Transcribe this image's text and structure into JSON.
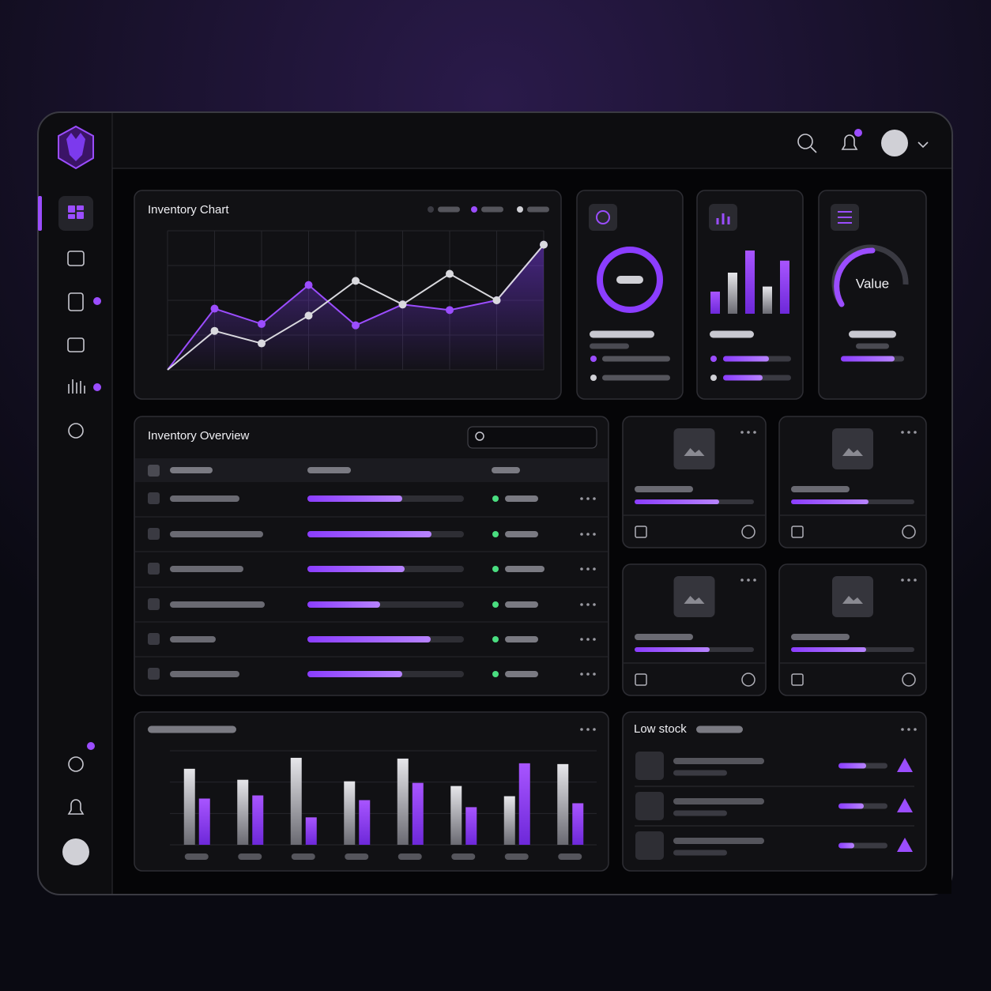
{
  "inventory_chart": {
    "type": "line",
    "title": "Inventory Chart",
    "x": [
      0,
      1,
      2,
      3,
      4,
      5,
      6,
      7,
      8
    ],
    "xlim": [
      0,
      8
    ],
    "ylim": [
      0,
      100
    ],
    "series": [
      {
        "color": "#9b4dff",
        "values": [
          0,
          44,
          33,
          61,
          32,
          47,
          43,
          50,
          90
        ]
      },
      {
        "color": "#d9d9de",
        "values": [
          0,
          28,
          19,
          39,
          64,
          47,
          69,
          50,
          90
        ]
      }
    ]
  },
  "mini_bars": {
    "type": "bar",
    "ylim": [
      0,
      100
    ],
    "values": [
      35,
      65,
      100,
      43,
      84
    ],
    "colors": [
      "#9b4dff",
      "#d9d9de",
      "#9b4dff",
      "#d9d9de",
      "#9b4dff"
    ]
  },
  "gauge": {
    "label": "Value"
  },
  "overview": {
    "title": "Inventory Overview"
  },
  "bottom_bars": {
    "type": "bar",
    "ylim": [
      0,
      120
    ],
    "series": [
      {
        "color": "#d9d9de",
        "values": [
          97,
          83,
          111,
          81,
          110,
          75,
          62,
          103
        ]
      },
      {
        "color": "#9b4dff",
        "values": [
          59,
          63,
          35,
          57,
          79,
          48,
          104,
          53
        ]
      }
    ]
  },
  "low_stock": {
    "title": "Low stock"
  }
}
